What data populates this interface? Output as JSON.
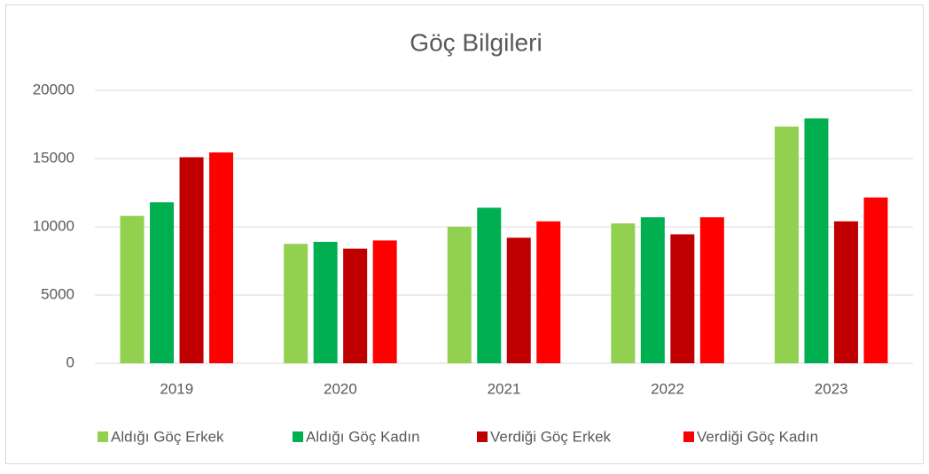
{
  "chart_data": {
    "type": "bar",
    "title": "Göç Bilgileri",
    "categories": [
      "2019",
      "2020",
      "2021",
      "2022",
      "2023"
    ],
    "series": [
      {
        "name": "Aldığı Göç Erkek",
        "color": "#92d050",
        "values": [
          10800,
          8750,
          10000,
          10250,
          17350
        ]
      },
      {
        "name": "Aldığı Göç Kadın",
        "color": "#00b050",
        "values": [
          11800,
          8900,
          11400,
          10700,
          17950
        ]
      },
      {
        "name": "Verdiği Göç Erkek",
        "color": "#c00000",
        "values": [
          15100,
          8400,
          9200,
          9450,
          10400
        ]
      },
      {
        "name": "Verdiği Göç Kadın",
        "color": "#ff0000",
        "values": [
          15450,
          9000,
          10400,
          10700,
          12150
        ]
      }
    ],
    "ylim": [
      0,
      20000
    ],
    "yticks": [
      0,
      5000,
      10000,
      15000,
      20000
    ],
    "grid": true,
    "legend": "bottom"
  }
}
